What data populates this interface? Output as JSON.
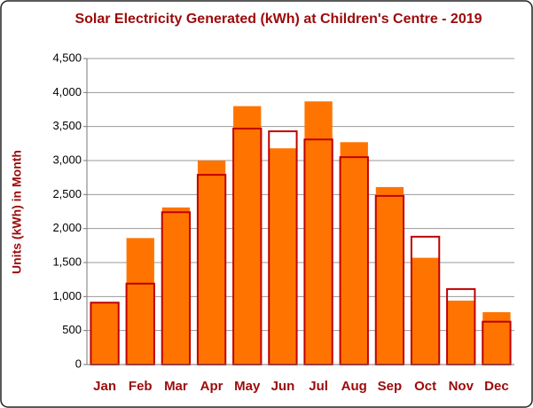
{
  "chart_data": {
    "type": "bar",
    "title": "Solar Electricity Generated (kWh) at Children's Centre - 2019",
    "y_label": "Units (kWh) in Month",
    "categories": [
      "Jan",
      "Feb",
      "Mar",
      "Apr",
      "May",
      "Jun",
      "Jul",
      "Aug",
      "Sep",
      "Oct",
      "Nov",
      "Dec"
    ],
    "series": [
      {
        "color": "#ff7400",
        "style": "filled",
        "values": [
          910,
          1860,
          2310,
          3000,
          3800,
          3180,
          3870,
          3270,
          2610,
          1570,
          940,
          770
        ]
      },
      {
        "color": "#c00000",
        "style": "outline",
        "values": [
          910,
          1190,
          2240,
          2790,
          3470,
          3430,
          3310,
          3050,
          2480,
          1880,
          1110,
          630
        ]
      }
    ],
    "ylim": [
      0,
      4500
    ],
    "yticks": [
      0,
      500,
      {
        "value": 1000,
        "label": "1,000"
      },
      {
        "value": 1500,
        "label": "1,500"
      },
      {
        "value": 2000,
        "label": "2,000"
      },
      {
        "value": 2500,
        "label": "2,500"
      },
      {
        "value": 3000,
        "label": "3,000"
      },
      {
        "value": 3500,
        "label": "3,500"
      },
      {
        "value": 4000,
        "label": "4,000"
      },
      {
        "value": 4500,
        "label": "4,500"
      }
    ],
    "grid": true
  }
}
